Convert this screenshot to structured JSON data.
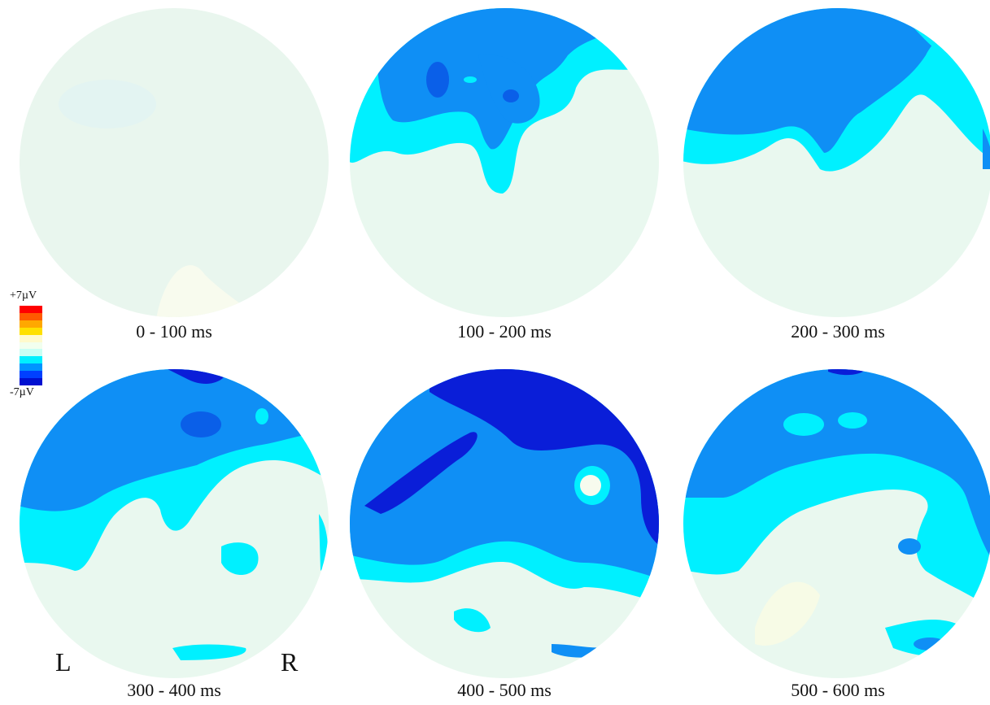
{
  "maps": [
    {
      "label": "0 - 100 ms"
    },
    {
      "label": "100 - 200 ms"
    },
    {
      "label": "200 - 300 ms"
    },
    {
      "label": "300 - 400 ms"
    },
    {
      "label": "400 - 500 ms"
    },
    {
      "label": "500 - 600 ms"
    }
  ],
  "side_labels": {
    "left": "L",
    "right": "R"
  },
  "colorbar": {
    "max_label": "+7µV",
    "min_label": "-7µV",
    "colors": [
      "#ff0000",
      "#ff5a00",
      "#ffa800",
      "#ffe000",
      "#fffacc",
      "#f2ffee",
      "#c8fff4",
      "#00f0ff",
      "#0094ff",
      "#0040ff",
      "#0010d0"
    ]
  },
  "palette": {
    "base": "#e9f9ef",
    "light": "#7ff5ff",
    "cyan": "#00f0ff",
    "blue": "#0f8ff5",
    "dark": "#0a1ed8",
    "warm": "#f7fbe6"
  }
}
